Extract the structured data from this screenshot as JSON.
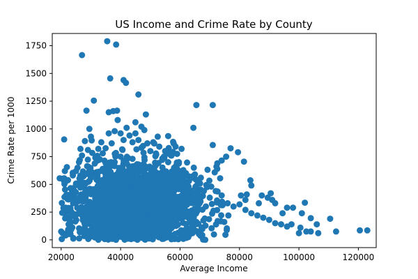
{
  "chart_data": {
    "type": "scatter",
    "title": "US Income and Crime Rate by County",
    "xlabel": "Average Income",
    "ylabel": "Crime Rate per 1000",
    "xlim": [
      17000,
      126000
    ],
    "ylim": [
      -70,
      1860
    ],
    "x_ticks": [
      20000,
      40000,
      60000,
      80000,
      100000,
      120000
    ],
    "y_ticks": [
      0,
      250,
      500,
      750,
      1000,
      1250,
      1500,
      1750
    ],
    "grid": false,
    "legend": "none",
    "marker_color": "#1f77b4",
    "points": [
      [
        35500,
        1790
      ],
      [
        38500,
        1760
      ],
      [
        27000,
        1665
      ],
      [
        36500,
        1455
      ],
      [
        41000,
        1440
      ],
      [
        41800,
        1415
      ],
      [
        46000,
        1310
      ],
      [
        31000,
        1255
      ],
      [
        28500,
        1165
      ],
      [
        36000,
        1150
      ],
      [
        37500,
        1160
      ],
      [
        38800,
        1165
      ],
      [
        48500,
        1130
      ],
      [
        65500,
        1215
      ],
      [
        71000,
        1215
      ],
      [
        64500,
        1010
      ],
      [
        21000,
        905
      ],
      [
        26500,
        820
      ],
      [
        29500,
        1000
      ],
      [
        45000,
        1060
      ],
      [
        47000,
        1020
      ],
      [
        52500,
        930
      ],
      [
        56000,
        935
      ],
      [
        58500,
        840
      ],
      [
        60500,
        820
      ],
      [
        59000,
        775
      ],
      [
        71000,
        855
      ],
      [
        74000,
        715
      ],
      [
        75500,
        750
      ],
      [
        72500,
        640
      ],
      [
        77000,
        825
      ],
      [
        79500,
        790
      ],
      [
        81500,
        705
      ],
      [
        73500,
        555
      ],
      [
        62000,
        600
      ],
      [
        65000,
        590
      ],
      [
        67000,
        560
      ],
      [
        69000,
        490
      ],
      [
        70500,
        480
      ],
      [
        84000,
        490
      ],
      [
        87500,
        400
      ],
      [
        80500,
        400
      ],
      [
        89500,
        380
      ],
      [
        82000,
        360
      ],
      [
        86500,
        330
      ],
      [
        90500,
        420
      ],
      [
        91000,
        360
      ],
      [
        92000,
        330
      ],
      [
        96000,
        290
      ],
      [
        98000,
        290
      ],
      [
        101000,
        240
      ],
      [
        94500,
        240
      ],
      [
        104000,
        195
      ],
      [
        102000,
        335
      ],
      [
        110500,
        190
      ],
      [
        100500,
        110
      ],
      [
        96000,
        120
      ],
      [
        97500,
        140
      ],
      [
        104000,
        75
      ],
      [
        106000,
        140
      ],
      [
        106500,
        60
      ],
      [
        102500,
        75
      ],
      [
        100000,
        60
      ],
      [
        112500,
        75
      ],
      [
        120500,
        85
      ],
      [
        123000,
        85
      ],
      [
        19500,
        555
      ],
      [
        21000,
        555
      ],
      [
        21500,
        290
      ],
      [
        20000,
        75
      ],
      [
        21500,
        40
      ],
      [
        22500,
        140
      ],
      [
        23000,
        200
      ],
      [
        24000,
        330
      ],
      [
        24500,
        440
      ],
      [
        25000,
        620
      ],
      [
        25500,
        650
      ],
      [
        26000,
        700
      ],
      [
        27000,
        760
      ],
      [
        28000,
        890
      ],
      [
        29000,
        810
      ],
      [
        30000,
        930
      ],
      [
        31500,
        740
      ],
      [
        32500,
        820
      ],
      [
        33500,
        880
      ],
      [
        34000,
        780
      ],
      [
        35000,
        690
      ],
      [
        36000,
        960
      ],
      [
        37000,
        870
      ],
      [
        38000,
        980
      ],
      [
        39000,
        1080
      ],
      [
        40000,
        960
      ],
      [
        41000,
        900
      ],
      [
        42000,
        1010
      ],
      [
        43000,
        940
      ],
      [
        44000,
        880
      ],
      [
        45000,
        960
      ],
      [
        46000,
        900
      ],
      [
        47000,
        830
      ],
      [
        48000,
        990
      ],
      [
        49000,
        870
      ],
      [
        50000,
        800
      ],
      [
        51000,
        880
      ],
      [
        52000,
        770
      ],
      [
        53000,
        840
      ],
      [
        54000,
        720
      ],
      [
        55000,
        800
      ],
      [
        56000,
        700
      ],
      [
        57000,
        760
      ],
      [
        58000,
        650
      ],
      [
        59000,
        640
      ],
      [
        60000,
        580
      ],
      [
        61000,
        520
      ],
      [
        62000,
        470
      ],
      [
        63000,
        530
      ],
      [
        64000,
        560
      ],
      [
        66000,
        520
      ],
      [
        68000,
        440
      ],
      [
        70000,
        380
      ],
      [
        72000,
        440
      ],
      [
        74000,
        400
      ],
      [
        76000,
        330
      ],
      [
        78000,
        300
      ],
      [
        80000,
        320
      ],
      [
        82000,
        270
      ],
      [
        84000,
        240
      ],
      [
        86000,
        220
      ],
      [
        88000,
        200
      ],
      [
        90000,
        180
      ],
      [
        92000,
        150
      ],
      [
        94000,
        140
      ],
      [
        30000,
        560
      ],
      [
        32000,
        610
      ],
      [
        34000,
        640
      ],
      [
        36000,
        590
      ],
      [
        38000,
        700
      ],
      [
        40000,
        750
      ],
      [
        42000,
        690
      ],
      [
        44000,
        730
      ],
      [
        46000,
        680
      ],
      [
        48000,
        610
      ],
      [
        50000,
        640
      ],
      [
        52000,
        570
      ],
      [
        54000,
        600
      ],
      [
        56000,
        530
      ],
      [
        58000,
        480
      ]
    ],
    "dense_region": {
      "x_mean": 45000,
      "x_sd": 11000,
      "y_mean": 300,
      "y_sd": 190,
      "count": 1800
    }
  }
}
